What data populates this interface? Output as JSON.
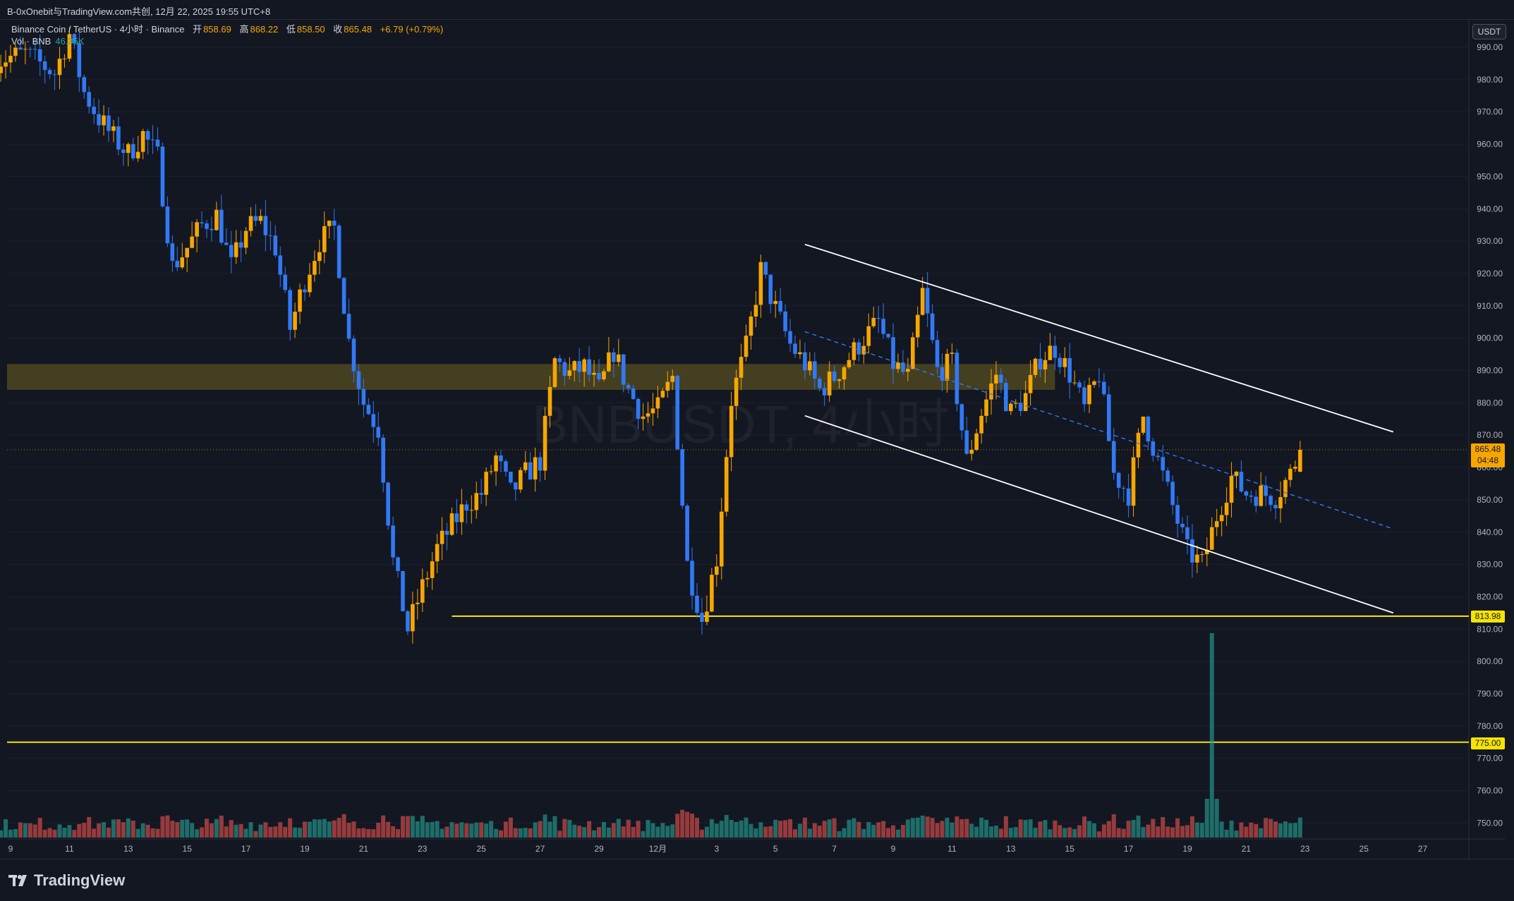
{
  "header": {
    "title": "B-0xOnebit与TradingView.com共创, 12月 22, 2025 19:55 UTC+8"
  },
  "legend": {
    "symbol": "Binance Coin / TetherUS · 4小时 · Binance",
    "open_label": "开",
    "open_value": "858.69",
    "high_label": "高",
    "high_value": "868.22",
    "low_label": "低",
    "low_value": "858.50",
    "close_label": "收",
    "close_value": "865.48",
    "change": "+6.79 (+0.79%)",
    "volume_label": "Vol · BNB",
    "volume_value": "46.35K"
  },
  "watermark": "BNBUSDT, 4小时",
  "price_axis": {
    "unit": "USDT",
    "ticks": [
      "990.00",
      "980.00",
      "970.00",
      "960.00",
      "950.00",
      "940.00",
      "930.00",
      "920.00",
      "910.00",
      "900.00",
      "890.00",
      "880.00",
      "870.00",
      "860.00",
      "850.00",
      "840.00",
      "830.00",
      "820.00",
      "810.00",
      "800.00",
      "790.00",
      "780.00",
      "770.00",
      "760.00",
      "750.00"
    ],
    "current_price": "865.48",
    "countdown": "04:48",
    "level_support": "813.98",
    "level_low": "775.00"
  },
  "time_axis": {
    "ticks": [
      "9",
      "11",
      "13",
      "15",
      "17",
      "19",
      "21",
      "23",
      "25",
      "27",
      "29",
      "12月",
      "3",
      "5",
      "7",
      "9",
      "11",
      "13",
      "15",
      "17",
      "19",
      "21",
      "23",
      "25",
      "27"
    ]
  },
  "brand": "TradingView",
  "colors": {
    "background": "#131722",
    "up": "#f7a600",
    "down": "#3179f5",
    "vol_up": "#26a69a",
    "vol_down": "#ef5350",
    "zone": "#4e4621",
    "level": "#f5e400",
    "channel": "#ffffff"
  },
  "chart_data": {
    "type": "candlestick",
    "title": "BNBUSDT, 4小时",
    "y_range": [
      745,
      998
    ],
    "x_range": [
      "2025-11-09",
      "2025-12-28"
    ],
    "resistance_zone": [
      884,
      892
    ],
    "horizontal_levels": [
      813.98,
      775.0
    ],
    "channel": {
      "upper": [
        [
          "2025-12-06",
          929
        ],
        [
          "2025-12-26",
          871
        ]
      ],
      "lower": [
        [
          "2025-12-06",
          876
        ],
        [
          "2025-12-26",
          815
        ]
      ],
      "mid_dashed": [
        [
          "2025-12-06",
          902
        ],
        [
          "2025-12-26",
          841
        ]
      ]
    },
    "close_anchors": [
      [
        "2025-11-08 12:00",
        986
      ],
      [
        "2025-11-09 12:00",
        988
      ],
      [
        "2025-11-10 12:00",
        982
      ],
      [
        "2025-11-11 00:00",
        994
      ],
      [
        "2025-11-11 12:00",
        976
      ],
      [
        "2025-11-12 00:00",
        968
      ],
      [
        "2025-11-12 12:00",
        962
      ],
      [
        "2025-11-13 00:00",
        957
      ],
      [
        "2025-11-13 12:00",
        963
      ],
      [
        "2025-11-14 00:00",
        956
      ],
      [
        "2025-11-14 12:00",
        922
      ],
      [
        "2025-11-15 00:00",
        928
      ],
      [
        "2025-11-15 12:00",
        935
      ],
      [
        "2025-11-16 00:00",
        938
      ],
      [
        "2025-11-16 12:00",
        922
      ],
      [
        "2025-11-17 00:00",
        934
      ],
      [
        "2025-11-17 12:00",
        936
      ],
      [
        "2025-11-18 00:00",
        928
      ],
      [
        "2025-11-18 12:00",
        903
      ],
      [
        "2025-11-19 00:00",
        918
      ],
      [
        "2025-11-19 12:00",
        930
      ],
      [
        "2025-11-20 00:00",
        934
      ],
      [
        "2025-11-20 12:00",
        899
      ],
      [
        "2025-11-21 00:00",
        880
      ],
      [
        "2025-11-21 12:00",
        872
      ],
      [
        "2025-11-22 00:00",
        831
      ],
      [
        "2025-11-22 12:00",
        810
      ],
      [
        "2025-11-23 00:00",
        823
      ],
      [
        "2025-11-23 12:00",
        835
      ],
      [
        "2025-11-24 00:00",
        842
      ],
      [
        "2025-11-24 12:00",
        849
      ],
      [
        "2025-11-25 00:00",
        852
      ],
      [
        "2025-11-25 12:00",
        863
      ],
      [
        "2025-11-26 00:00",
        852
      ],
      [
        "2025-11-26 12:00",
        858
      ],
      [
        "2025-11-27 00:00",
        862
      ],
      [
        "2025-11-27 12:00",
        893
      ],
      [
        "2025-11-28 00:00",
        889
      ],
      [
        "2025-11-28 12:00",
        891
      ],
      [
        "2025-11-29 00:00",
        884
      ],
      [
        "2025-11-29 12:00",
        896
      ],
      [
        "2025-11-30 00:00",
        884
      ],
      [
        "2025-11-30 12:00",
        876
      ],
      [
        "2025-12-01 00:00",
        878
      ],
      [
        "2025-12-01 12:00",
        888
      ],
      [
        "2025-12-02 00:00",
        830
      ],
      [
        "2025-12-02 12:00",
        813
      ],
      [
        "2025-12-03 00:00",
        832
      ],
      [
        "2025-12-03 12:00",
        881
      ],
      [
        "2025-12-04 00:00",
        897
      ],
      [
        "2025-12-04 12:00",
        921
      ],
      [
        "2025-12-05 00:00",
        909
      ],
      [
        "2025-12-05 12:00",
        898
      ],
      [
        "2025-12-06 00:00",
        892
      ],
      [
        "2025-12-06 12:00",
        884
      ],
      [
        "2025-12-07 00:00",
        888
      ],
      [
        "2025-12-07 12:00",
        894
      ],
      [
        "2025-12-08 00:00",
        900
      ],
      [
        "2025-12-08 12:00",
        905
      ],
      [
        "2025-12-09 00:00",
        892
      ],
      [
        "2025-12-09 12:00",
        888
      ],
      [
        "2025-12-10 00:00",
        914
      ],
      [
        "2025-12-10 12:00",
        890
      ],
      [
        "2025-12-11 00:00",
        892
      ],
      [
        "2025-12-11 12:00",
        862
      ],
      [
        "2025-12-12 00:00",
        877
      ],
      [
        "2025-12-12 12:00",
        889
      ],
      [
        "2025-12-13 00:00",
        877
      ],
      [
        "2025-12-13 12:00",
        882
      ],
      [
        "2025-12-14 00:00",
        894
      ],
      [
        "2025-12-14 12:00",
        897
      ],
      [
        "2025-12-15 00:00",
        889
      ],
      [
        "2025-12-15 12:00",
        878
      ],
      [
        "2025-12-16 00:00",
        889
      ],
      [
        "2025-12-16 12:00",
        858
      ],
      [
        "2025-12-17 00:00",
        852
      ],
      [
        "2025-12-17 12:00",
        876
      ],
      [
        "2025-12-18 00:00",
        862
      ],
      [
        "2025-12-18 12:00",
        848
      ],
      [
        "2025-12-19 00:00",
        834
      ],
      [
        "2025-12-19 12:00",
        830
      ],
      [
        "2025-12-20 00:00",
        845
      ],
      [
        "2025-12-20 12:00",
        857
      ],
      [
        "2025-12-21 00:00",
        852
      ],
      [
        "2025-12-21 12:00",
        852
      ],
      [
        "2025-12-22 00:00",
        851
      ],
      [
        "2025-12-22 12:00",
        858
      ],
      [
        "2025-12-22 20:00",
        865.48
      ]
    ],
    "volume_spike": [
      "2025-12-19 20:00",
      "very high"
    ]
  }
}
